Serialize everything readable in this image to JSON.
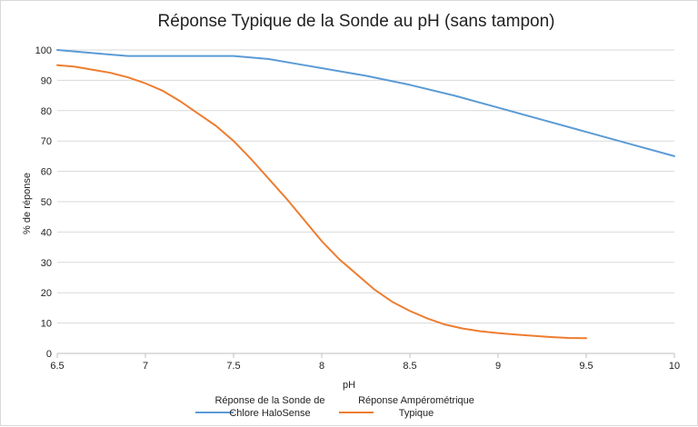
{
  "chart_data": {
    "type": "line",
    "title": "Réponse Typique de la Sonde au pH (sans tampon)",
    "xlabel": "pH",
    "ylabel": "% de réponse",
    "xlim": [
      6.5,
      10
    ],
    "ylim": [
      0,
      100
    ],
    "x_ticks": [
      "6.5",
      "7",
      "7.5",
      "8",
      "8.5",
      "9",
      "9.5",
      "10"
    ],
    "y_ticks": [
      "0",
      "10",
      "20",
      "30",
      "40",
      "50",
      "60",
      "70",
      "80",
      "90",
      "100"
    ],
    "grid": true,
    "legend_position": "bottom",
    "series": [
      {
        "name_lines": [
          "Réponse de la Sonde de",
          "Chlore HaloSense"
        ],
        "color": "#5b9bd5",
        "points": [
          [
            6.5,
            100
          ],
          [
            6.7,
            99
          ],
          [
            6.9,
            98
          ],
          [
            7.0,
            98
          ],
          [
            7.2,
            98
          ],
          [
            7.5,
            98
          ],
          [
            7.7,
            97
          ],
          [
            7.9,
            95
          ],
          [
            8.0,
            94
          ],
          [
            8.25,
            91.5
          ],
          [
            8.5,
            88.5
          ],
          [
            8.75,
            85
          ],
          [
            9.0,
            81
          ],
          [
            9.25,
            77
          ],
          [
            9.5,
            73
          ],
          [
            9.75,
            69
          ],
          [
            10.0,
            65
          ]
        ]
      },
      {
        "name_lines": [
          "Réponse Ampérométrique",
          "Typique"
        ],
        "color": "#ed7d31",
        "points": [
          [
            6.5,
            95
          ],
          [
            6.6,
            94.5
          ],
          [
            6.7,
            93.5
          ],
          [
            6.8,
            92.5
          ],
          [
            6.9,
            91
          ],
          [
            7.0,
            89
          ],
          [
            7.1,
            86.5
          ],
          [
            7.2,
            83
          ],
          [
            7.3,
            79
          ],
          [
            7.4,
            75
          ],
          [
            7.5,
            70
          ],
          [
            7.6,
            64
          ],
          [
            7.7,
            57.5
          ],
          [
            7.8,
            51
          ],
          [
            7.9,
            44
          ],
          [
            8.0,
            37
          ],
          [
            8.1,
            31
          ],
          [
            8.2,
            26
          ],
          [
            8.3,
            21
          ],
          [
            8.4,
            17
          ],
          [
            8.5,
            14
          ],
          [
            8.6,
            11.5
          ],
          [
            8.7,
            9.5
          ],
          [
            8.8,
            8.2
          ],
          [
            8.9,
            7.3
          ],
          [
            9.0,
            6.7
          ],
          [
            9.1,
            6.2
          ],
          [
            9.2,
            5.8
          ],
          [
            9.3,
            5.4
          ],
          [
            9.4,
            5.1
          ],
          [
            9.5,
            5
          ]
        ]
      }
    ]
  }
}
